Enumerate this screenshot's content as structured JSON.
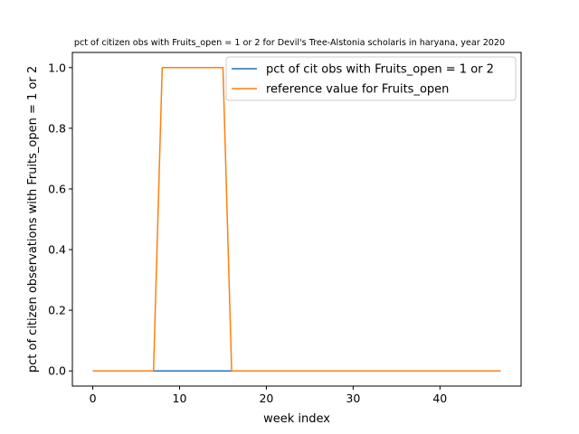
{
  "chart_data": {
    "type": "line",
    "title": "pct of citizen obs with Fruits_open = 1 or 2 for Devil's Tree-Alstonia scholaris in haryana, year 2020",
    "xlabel": "week index",
    "ylabel": "pct of citizen observations with Fruits_open = 1 or 2",
    "xlim": [
      -2.35,
      49.35
    ],
    "ylim": [
      -0.05,
      1.05
    ],
    "xticks": [
      0,
      10,
      20,
      30,
      40
    ],
    "yticks": [
      0.0,
      0.2,
      0.4,
      0.6,
      0.8,
      1.0
    ],
    "xtick_labels": [
      "0",
      "10",
      "20",
      "30",
      "40"
    ],
    "ytick_labels": [
      "0.0",
      "0.2",
      "0.4",
      "0.6",
      "0.8",
      "1.0"
    ],
    "grid": false,
    "legend_position": "top-right",
    "x": [
      0,
      1,
      2,
      3,
      4,
      5,
      6,
      7,
      8,
      9,
      10,
      11,
      12,
      13,
      14,
      15,
      16,
      17,
      18,
      19,
      20,
      21,
      22,
      23,
      24,
      25,
      26,
      27,
      28,
      29,
      30,
      31,
      32,
      33,
      34,
      35,
      36,
      37,
      38,
      39,
      40,
      41,
      42,
      43,
      44,
      45,
      46,
      47
    ],
    "series": [
      {
        "name": "pct of cit obs with Fruits_open = 1 or 2",
        "color": "#1f77b4",
        "values": [
          0,
          0,
          0,
          0,
          0,
          0,
          0,
          0,
          0,
          0,
          0,
          0,
          0,
          0,
          0,
          0,
          0,
          0,
          0,
          0,
          0,
          0,
          0,
          0,
          0,
          0,
          0,
          0,
          0,
          0,
          0,
          0,
          0,
          0,
          0,
          0,
          0,
          0,
          0,
          0,
          0,
          0,
          0,
          0,
          0,
          0,
          0,
          0
        ]
      },
      {
        "name": "reference value for Fruits_open",
        "color": "#ff7f0e",
        "values": [
          0,
          0,
          0,
          0,
          0,
          0,
          0,
          0,
          1,
          1,
          1,
          1,
          1,
          1,
          1,
          1,
          0,
          0,
          0,
          0,
          0,
          0,
          0,
          0,
          0,
          0,
          0,
          0,
          0,
          0,
          0,
          0,
          0,
          0,
          0,
          0,
          0,
          0,
          0,
          0,
          0,
          0,
          0,
          0,
          0,
          0,
          0,
          0
        ]
      }
    ]
  }
}
